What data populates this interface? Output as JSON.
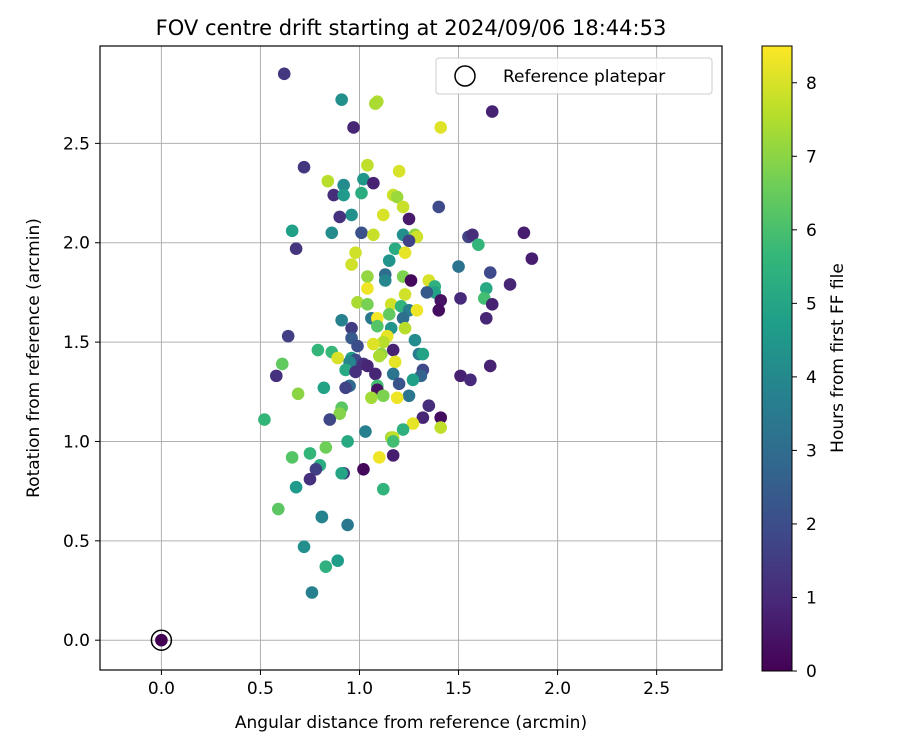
{
  "chart_data": {
    "type": "scatter",
    "title": "FOV centre drift starting at 2024/09/06 18:44:53",
    "xlabel": "Angular distance from reference (arcmin)",
    "ylabel": "Rotation from reference (arcmin)",
    "xlim": [
      -0.31,
      2.83
    ],
    "ylim": [
      -0.15,
      2.99
    ],
    "xticks": [
      0.0,
      0.5,
      1.0,
      1.5,
      2.0,
      2.5
    ],
    "yticks": [
      0.0,
      0.5,
      1.0,
      1.5,
      2.0,
      2.5
    ],
    "xtick_labels": [
      "0.0",
      "0.5",
      "1.0",
      "1.5",
      "2.0",
      "2.5"
    ],
    "ytick_labels": [
      "0.0",
      "0.5",
      "1.0",
      "1.5",
      "2.0",
      "2.5"
    ],
    "grid": true,
    "legend": {
      "label": "Reference platepar",
      "placement": "top-right"
    },
    "colorbar": {
      "label": "Hours from first FF file",
      "colormap": "viridis",
      "range": [
        0,
        8.5
      ],
      "ticks": [
        0,
        1,
        2,
        3,
        4,
        5,
        6,
        7,
        8
      ],
      "tick_labels": [
        "0",
        "1",
        "2",
        "3",
        "4",
        "5",
        "6",
        "7",
        "8"
      ]
    },
    "reference_point": {
      "x": 0.0,
      "y": 0.0,
      "c": 0.0
    },
    "points": [
      {
        "x": 0.62,
        "y": 2.85,
        "c": 1.4
      },
      {
        "x": 0.91,
        "y": 2.72,
        "c": 4.3
      },
      {
        "x": 1.09,
        "y": 2.71,
        "c": 7.5
      },
      {
        "x": 1.08,
        "y": 2.7,
        "c": 7.4
      },
      {
        "x": 1.67,
        "y": 2.66,
        "c": 0.8
      },
      {
        "x": 0.97,
        "y": 2.58,
        "c": 0.9
      },
      {
        "x": 1.41,
        "y": 2.58,
        "c": 8.1
      },
      {
        "x": 1.04,
        "y": 2.39,
        "c": 7.7
      },
      {
        "x": 0.72,
        "y": 2.38,
        "c": 1.4
      },
      {
        "x": 1.2,
        "y": 2.36,
        "c": 8.0
      },
      {
        "x": 1.02,
        "y": 2.32,
        "c": 4.5
      },
      {
        "x": 0.84,
        "y": 2.31,
        "c": 7.6
      },
      {
        "x": 0.92,
        "y": 2.29,
        "c": 4.1
      },
      {
        "x": 1.07,
        "y": 2.3,
        "c": 0.8
      },
      {
        "x": 0.87,
        "y": 2.24,
        "c": 1.1
      },
      {
        "x": 0.92,
        "y": 2.24,
        "c": 4.6
      },
      {
        "x": 1.01,
        "y": 2.25,
        "c": 5.3
      },
      {
        "x": 1.17,
        "y": 2.24,
        "c": 7.8
      },
      {
        "x": 1.19,
        "y": 2.23,
        "c": 7.2
      },
      {
        "x": 1.22,
        "y": 2.18,
        "c": 7.8
      },
      {
        "x": 1.4,
        "y": 2.18,
        "c": 1.9
      },
      {
        "x": 0.96,
        "y": 2.14,
        "c": 4.3
      },
      {
        "x": 1.12,
        "y": 2.14,
        "c": 8.0
      },
      {
        "x": 1.25,
        "y": 2.12,
        "c": 0.6
      },
      {
        "x": 0.9,
        "y": 2.13,
        "c": 1.2
      },
      {
        "x": 0.66,
        "y": 2.06,
        "c": 4.8
      },
      {
        "x": 0.86,
        "y": 2.05,
        "c": 4.1
      },
      {
        "x": 1.01,
        "y": 2.05,
        "c": 2.1
      },
      {
        "x": 1.07,
        "y": 2.04,
        "c": 7.8
      },
      {
        "x": 1.22,
        "y": 2.04,
        "c": 4.2
      },
      {
        "x": 1.28,
        "y": 2.04,
        "c": 7.0
      },
      {
        "x": 1.29,
        "y": 2.03,
        "c": 7.9
      },
      {
        "x": 1.55,
        "y": 2.03,
        "c": 1.7
      },
      {
        "x": 1.57,
        "y": 2.04,
        "c": 1.1
      },
      {
        "x": 1.83,
        "y": 2.05,
        "c": 0.7
      },
      {
        "x": 1.25,
        "y": 2.01,
        "c": 1.7
      },
      {
        "x": 0.68,
        "y": 1.97,
        "c": 1.3
      },
      {
        "x": 1.18,
        "y": 1.97,
        "c": 5.2
      },
      {
        "x": 1.6,
        "y": 1.99,
        "c": 5.6
      },
      {
        "x": 0.98,
        "y": 1.95,
        "c": 7.9
      },
      {
        "x": 1.23,
        "y": 1.95,
        "c": 8.2
      },
      {
        "x": 1.15,
        "y": 1.91,
        "c": 4.4
      },
      {
        "x": 1.87,
        "y": 1.92,
        "c": 0.7
      },
      {
        "x": 0.96,
        "y": 1.89,
        "c": 7.9
      },
      {
        "x": 1.5,
        "y": 1.88,
        "c": 3.2
      },
      {
        "x": 1.13,
        "y": 1.84,
        "c": 3.0
      },
      {
        "x": 1.04,
        "y": 1.83,
        "c": 7.1
      },
      {
        "x": 1.22,
        "y": 1.83,
        "c": 6.8
      },
      {
        "x": 1.26,
        "y": 1.81,
        "c": 0.2
      },
      {
        "x": 1.35,
        "y": 1.81,
        "c": 8.0
      },
      {
        "x": 1.66,
        "y": 1.85,
        "c": 1.9
      },
      {
        "x": 1.13,
        "y": 1.81,
        "c": 3.9
      },
      {
        "x": 1.38,
        "y": 1.78,
        "c": 5.4
      },
      {
        "x": 1.76,
        "y": 1.79,
        "c": 0.9
      },
      {
        "x": 1.04,
        "y": 1.77,
        "c": 8.3
      },
      {
        "x": 1.38,
        "y": 1.75,
        "c": 4.9
      },
      {
        "x": 1.34,
        "y": 1.75,
        "c": 2.4
      },
      {
        "x": 1.64,
        "y": 1.77,
        "c": 5.1
      },
      {
        "x": 1.23,
        "y": 1.74,
        "c": 7.9
      },
      {
        "x": 1.63,
        "y": 1.72,
        "c": 5.9
      },
      {
        "x": 1.51,
        "y": 1.72,
        "c": 1.0
      },
      {
        "x": 1.41,
        "y": 1.71,
        "c": 0.4
      },
      {
        "x": 0.99,
        "y": 1.7,
        "c": 7.4
      },
      {
        "x": 1.04,
        "y": 1.69,
        "c": 6.7
      },
      {
        "x": 1.16,
        "y": 1.69,
        "c": 7.9
      },
      {
        "x": 1.21,
        "y": 1.68,
        "c": 5.5
      },
      {
        "x": 1.25,
        "y": 1.66,
        "c": 3.6
      },
      {
        "x": 1.67,
        "y": 1.69,
        "c": 0.8
      },
      {
        "x": 1.4,
        "y": 1.66,
        "c": 0.3
      },
      {
        "x": 1.29,
        "y": 1.66,
        "c": 8.3
      },
      {
        "x": 1.15,
        "y": 1.64,
        "c": 6.4
      },
      {
        "x": 1.06,
        "y": 1.62,
        "c": 3.4
      },
      {
        "x": 1.09,
        "y": 1.62,
        "c": 8.4
      },
      {
        "x": 1.22,
        "y": 1.62,
        "c": 3.1
      },
      {
        "x": 1.64,
        "y": 1.62,
        "c": 0.9
      },
      {
        "x": 0.91,
        "y": 1.61,
        "c": 3.7
      },
      {
        "x": 1.09,
        "y": 1.58,
        "c": 6.2
      },
      {
        "x": 1.23,
        "y": 1.57,
        "c": 7.6
      },
      {
        "x": 1.16,
        "y": 1.57,
        "c": 4.4
      },
      {
        "x": 0.96,
        "y": 1.57,
        "c": 1.5
      },
      {
        "x": 1.14,
        "y": 1.53,
        "c": 8.2
      },
      {
        "x": 0.64,
        "y": 1.53,
        "c": 1.6
      },
      {
        "x": 0.96,
        "y": 1.52,
        "c": 2.4
      },
      {
        "x": 1.12,
        "y": 1.5,
        "c": 7.6
      },
      {
        "x": 1.07,
        "y": 1.49,
        "c": 8.1
      },
      {
        "x": 1.28,
        "y": 1.51,
        "c": 4.1
      },
      {
        "x": 0.99,
        "y": 1.48,
        "c": 2.0
      },
      {
        "x": 0.79,
        "y": 1.46,
        "c": 5.6
      },
      {
        "x": 0.86,
        "y": 1.45,
        "c": 5.7
      },
      {
        "x": 1.17,
        "y": 1.46,
        "c": 0.8
      },
      {
        "x": 1.3,
        "y": 1.44,
        "c": 3.6
      },
      {
        "x": 1.32,
        "y": 1.44,
        "c": 4.9
      },
      {
        "x": 1.11,
        "y": 1.44,
        "c": 7.1
      },
      {
        "x": 1.1,
        "y": 1.43,
        "c": 7.4
      },
      {
        "x": 0.96,
        "y": 1.42,
        "c": 4.7
      },
      {
        "x": 0.98,
        "y": 1.41,
        "c": 1.9
      },
      {
        "x": 0.89,
        "y": 1.42,
        "c": 8.0
      },
      {
        "x": 0.95,
        "y": 1.4,
        "c": 3.9
      },
      {
        "x": 1.02,
        "y": 1.39,
        "c": 1.2
      },
      {
        "x": 1.18,
        "y": 1.4,
        "c": 8.2
      },
      {
        "x": 0.61,
        "y": 1.39,
        "c": 6.4
      },
      {
        "x": 1.04,
        "y": 1.38,
        "c": 0.9
      },
      {
        "x": 1.66,
        "y": 1.38,
        "c": 0.8
      },
      {
        "x": 0.93,
        "y": 1.36,
        "c": 5.1
      },
      {
        "x": 0.98,
        "y": 1.35,
        "c": 1.2
      },
      {
        "x": 1.08,
        "y": 1.34,
        "c": 0.9
      },
      {
        "x": 1.17,
        "y": 1.34,
        "c": 3.3
      },
      {
        "x": 1.32,
        "y": 1.36,
        "c": 1.9
      },
      {
        "x": 0.58,
        "y": 1.33,
        "c": 1.2
      },
      {
        "x": 1.51,
        "y": 1.33,
        "c": 0.8
      },
      {
        "x": 1.31,
        "y": 1.33,
        "c": 2.7
      },
      {
        "x": 1.27,
        "y": 1.31,
        "c": 4.8
      },
      {
        "x": 1.56,
        "y": 1.31,
        "c": 1.0
      },
      {
        "x": 1.2,
        "y": 1.29,
        "c": 2.2
      },
      {
        "x": 1.09,
        "y": 1.28,
        "c": 5.9
      },
      {
        "x": 0.95,
        "y": 1.28,
        "c": 2.9
      },
      {
        "x": 0.93,
        "y": 1.27,
        "c": 1.7
      },
      {
        "x": 0.82,
        "y": 1.27,
        "c": 4.9
      },
      {
        "x": 1.09,
        "y": 1.26,
        "c": 0.4
      },
      {
        "x": 0.69,
        "y": 1.24,
        "c": 7.0
      },
      {
        "x": 1.25,
        "y": 1.23,
        "c": 3.3
      },
      {
        "x": 1.19,
        "y": 1.22,
        "c": 8.3
      },
      {
        "x": 1.06,
        "y": 1.22,
        "c": 7.3
      },
      {
        "x": 1.12,
        "y": 1.23,
        "c": 6.8
      },
      {
        "x": 1.35,
        "y": 1.18,
        "c": 1.1
      },
      {
        "x": 0.91,
        "y": 1.17,
        "c": 6.3
      },
      {
        "x": 0.9,
        "y": 1.14,
        "c": 6.9
      },
      {
        "x": 1.32,
        "y": 1.12,
        "c": 0.9
      },
      {
        "x": 0.52,
        "y": 1.11,
        "c": 5.6
      },
      {
        "x": 0.85,
        "y": 1.11,
        "c": 1.8
      },
      {
        "x": 1.41,
        "y": 1.12,
        "c": 0.3
      },
      {
        "x": 1.41,
        "y": 1.07,
        "c": 7.7
      },
      {
        "x": 1.27,
        "y": 1.09,
        "c": 8.2
      },
      {
        "x": 1.22,
        "y": 1.06,
        "c": 5.4
      },
      {
        "x": 1.03,
        "y": 1.05,
        "c": 3.7
      },
      {
        "x": 1.16,
        "y": 1.02,
        "c": 7.3
      },
      {
        "x": 1.17,
        "y": 1.02,
        "c": 7.7
      },
      {
        "x": 0.94,
        "y": 1.0,
        "c": 5.1
      },
      {
        "x": 1.17,
        "y": 1.0,
        "c": 5.9
      },
      {
        "x": 0.83,
        "y": 0.97,
        "c": 6.6
      },
      {
        "x": 0.75,
        "y": 0.94,
        "c": 5.6
      },
      {
        "x": 1.1,
        "y": 0.92,
        "c": 8.3
      },
      {
        "x": 1.17,
        "y": 0.93,
        "c": 0.7
      },
      {
        "x": 0.66,
        "y": 0.92,
        "c": 6.2
      },
      {
        "x": 0.8,
        "y": 0.88,
        "c": 5.3
      },
      {
        "x": 0.78,
        "y": 0.86,
        "c": 1.6
      },
      {
        "x": 1.02,
        "y": 0.86,
        "c": 0.2
      },
      {
        "x": 0.92,
        "y": 0.84,
        "c": 1.2
      },
      {
        "x": 0.91,
        "y": 0.84,
        "c": 5.0
      },
      {
        "x": 0.75,
        "y": 0.81,
        "c": 1.2
      },
      {
        "x": 0.68,
        "y": 0.77,
        "c": 4.6
      },
      {
        "x": 1.12,
        "y": 0.76,
        "c": 5.5
      },
      {
        "x": 0.59,
        "y": 0.66,
        "c": 6.3
      },
      {
        "x": 0.81,
        "y": 0.62,
        "c": 3.5
      },
      {
        "x": 0.81,
        "y": 0.62,
        "c": 3.8
      },
      {
        "x": 0.94,
        "y": 0.58,
        "c": 3.4
      },
      {
        "x": 0.72,
        "y": 0.47,
        "c": 4.2
      },
      {
        "x": 0.89,
        "y": 0.4,
        "c": 4.7
      },
      {
        "x": 0.83,
        "y": 0.37,
        "c": 5.4
      },
      {
        "x": 0.76,
        "y": 0.24,
        "c": 3.7
      }
    ]
  }
}
